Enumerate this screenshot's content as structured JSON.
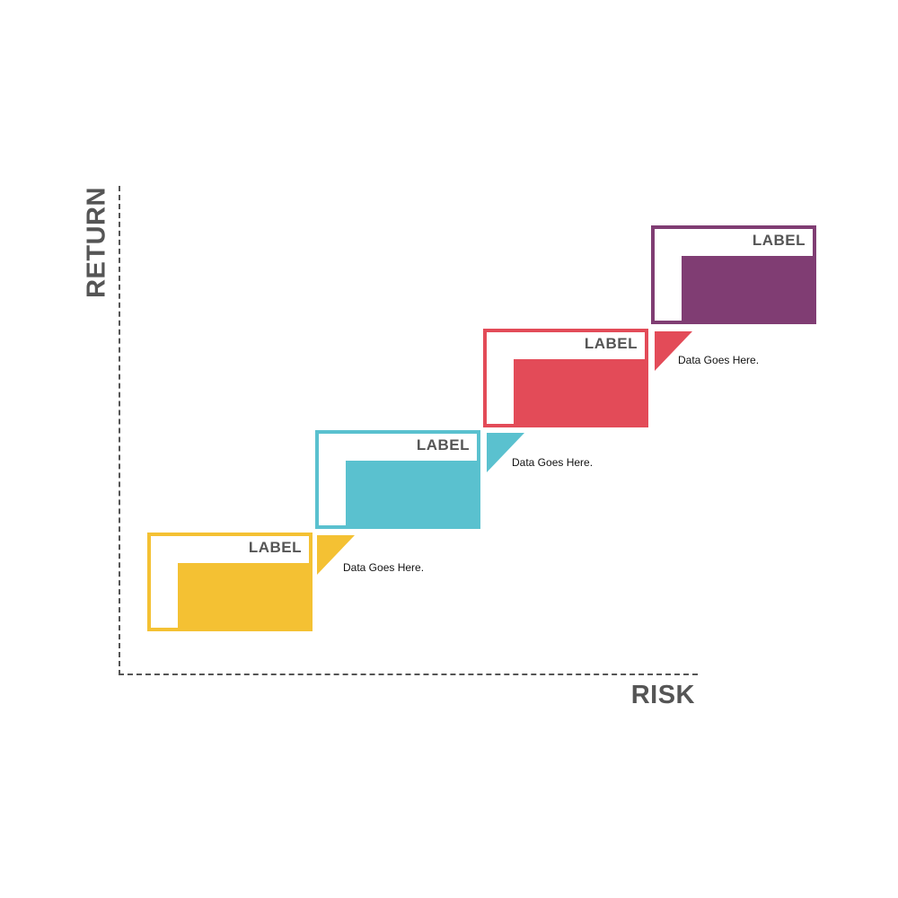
{
  "axes": {
    "y_label": "RETURN",
    "x_label": "RISK"
  },
  "steps": [
    {
      "label": "LABEL",
      "note": "Data Goes Here.",
      "color": "#F4C133"
    },
    {
      "label": "LABEL",
      "note": "Data Goes Here.",
      "color": "#5AC1CF"
    },
    {
      "label": "LABEL",
      "note": "Data Goes Here.",
      "color": "#E34B58"
    },
    {
      "label": "LABEL",
      "note": "",
      "color": "#803D73"
    }
  ]
}
